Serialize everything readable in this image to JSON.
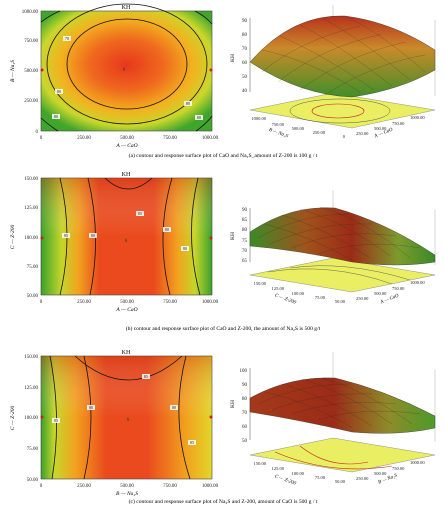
{
  "colors": {
    "hot": "#e8371c",
    "mid": "#f3a21c",
    "warm": "#e7e62b",
    "cool": "#2f9f2a",
    "contour": "#1a1a1a",
    "floor": "#e9ee63"
  },
  "chart_data": [
    {
      "type": "heatmap",
      "panel": "a",
      "title": "KH",
      "xlabel": "A — CaO",
      "ylabel": "B — Na₂S",
      "xlim": [
        0,
        1000
      ],
      "ylim": [
        0,
        1000
      ],
      "x_ticks": [
        "0",
        "250.00",
        "500.00",
        "750.00",
        "1000.00"
      ],
      "y_ticks": [
        "0",
        "250.00",
        "500.00",
        "750.00",
        "1000.00"
      ],
      "center_label": "6",
      "contour_labels": [
        "70",
        "80",
        "80",
        "80",
        "80"
      ],
      "caption": "(a) contour and response surface plot of CaO and Na₂S_amount of Z-200 is 100 g / t"
    },
    {
      "type": "surface",
      "panel": "a",
      "zlabel": "KH",
      "z_ticks": [
        "90",
        "80",
        "70",
        "60",
        "50",
        "40"
      ],
      "x_axis_label": "A — CaO",
      "y_axis_label": "B — Na₂S",
      "x_ticks": [
        "0",
        "250.00",
        "500.00",
        "750.00",
        "1000.00"
      ],
      "y_ticks": [
        "0",
        "250.00",
        "500.00",
        "750.00",
        "1000.00"
      ]
    },
    {
      "type": "heatmap",
      "panel": "b",
      "title": "KH",
      "xlabel": "A — CaO",
      "ylabel": "C — Z-200",
      "xlim": [
        0,
        1000
      ],
      "ylim": [
        50,
        150
      ],
      "x_ticks": [
        "0",
        "250.00",
        "500.00",
        "750.00",
        "1000.00"
      ],
      "y_ticks": [
        "50.00",
        "75.00",
        "100.00",
        "125.00",
        "150.00"
      ],
      "center_label": "6",
      "contour_labels": [
        "85",
        "80",
        "85",
        "80",
        "80"
      ],
      "caption": "(b) contour and response surface plot of CaO and Z-200, the amount of Na₂S is 500 g/t"
    },
    {
      "type": "surface",
      "panel": "b",
      "zlabel": "KH",
      "z_ticks": [
        "90",
        "85",
        "80",
        "75",
        "70",
        "65"
      ],
      "x_axis_label": "A — CaO",
      "y_axis_label": "C — Z-200",
      "x_ticks": [
        "0",
        "250.00",
        "500.00",
        "750.00",
        "1000.00"
      ],
      "y_ticks": [
        "50.00",
        "75.00",
        "100.00",
        "125.00",
        "150.00"
      ]
    },
    {
      "type": "heatmap",
      "panel": "c",
      "title": "KH",
      "xlabel": "B — Na₂S",
      "ylabel": "C — Z-200",
      "xlim": [
        0,
        1000
      ],
      "ylim": [
        50,
        150
      ],
      "x_ticks": [
        "0",
        "250.00",
        "500.00",
        "750.00",
        "1000.00"
      ],
      "y_ticks": [
        "50.00",
        "75.00",
        "100.00",
        "125.00",
        "150.00"
      ],
      "center_label": "6",
      "contour_labels": [
        "85",
        "80",
        "85",
        "80",
        "85"
      ],
      "caption": "(c) contour and response surface plot of Na₂S and Z-200, amount of CaO is 500 g / t"
    },
    {
      "type": "surface",
      "panel": "c",
      "zlabel": "KH",
      "z_ticks": [
        "100",
        "90",
        "80",
        "70",
        "60",
        "50"
      ],
      "x_axis_label": "B — Na₂S",
      "y_axis_label": "C — Z-200",
      "x_ticks": [
        "0",
        "250.00",
        "500.00",
        "750.00",
        "1000.00"
      ],
      "y_ticks": [
        "50.00",
        "75.00",
        "100.00",
        "125.00",
        "150.00"
      ]
    }
  ]
}
